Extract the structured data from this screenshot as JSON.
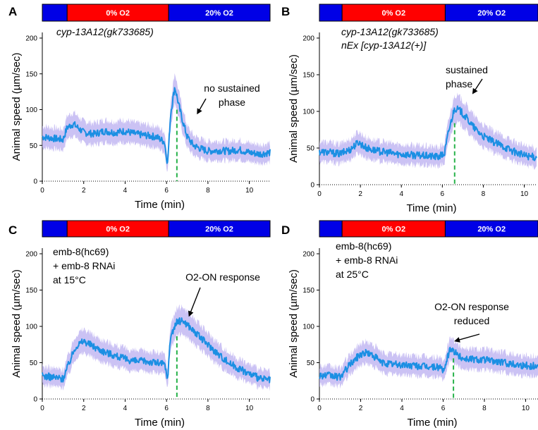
{
  "chart_data": [
    {
      "type": "line",
      "panel": "A",
      "xlabel": "Time (min)",
      "ylabel": "Animal speed (µm/sec)",
      "xlim": [
        0,
        11
      ],
      "ylim": [
        0,
        200
      ],
      "xticks": [
        0,
        2,
        4,
        6,
        8,
        10
      ],
      "yticks": [
        0,
        50,
        100,
        150,
        200
      ],
      "condition_bar": [
        {
          "label": "",
          "start": 0,
          "end": 1.2,
          "color": "#0000e6"
        },
        {
          "label": "0% O2",
          "start": 1.2,
          "end": 6.1,
          "color": "#ff0000"
        },
        {
          "label": "20% O2",
          "start": 6.1,
          "end": 11,
          "color": "#0000e6"
        }
      ],
      "annotation_lines": [
        "cyp-13A12(gk733685)"
      ],
      "callout": {
        "lines": [
          "no sustained",
          "phase"
        ],
        "points_to": [
          7.5,
          95
        ]
      },
      "marker_x": 6.5,
      "series": [
        {
          "x": [
            0,
            0.5,
            1.0,
            1.2,
            1.5,
            2.0,
            2.5,
            3.0,
            3.5,
            4.0,
            4.5,
            5.0,
            5.5,
            5.9,
            6.05,
            6.2,
            6.4,
            6.6,
            6.8,
            7.0,
            7.3,
            7.6,
            8.0,
            8.5,
            9.0,
            9.5,
            10.0,
            10.5,
            11.0
          ],
          "y": [
            62,
            60,
            58,
            75,
            80,
            68,
            66,
            70,
            68,
            70,
            66,
            64,
            62,
            55,
            24,
            95,
            132,
            105,
            82,
            62,
            50,
            46,
            42,
            43,
            42,
            44,
            40,
            38,
            40
          ],
          "color": "#1b8fe3"
        }
      ]
    },
    {
      "type": "line",
      "panel": "B",
      "xlabel": "Time (min)",
      "ylabel": "Animal speed (µm/sec)",
      "xlim": [
        0,
        10.6
      ],
      "ylim": [
        0,
        200
      ],
      "xticks": [
        0,
        2,
        4,
        6,
        8,
        10
      ],
      "yticks": [
        0,
        50,
        100,
        150,
        200
      ],
      "condition_bar": [
        {
          "label": "",
          "start": 0,
          "end": 1.1,
          "color": "#0000e6"
        },
        {
          "label": "0% O2",
          "start": 1.1,
          "end": 6.1,
          "color": "#ff0000"
        },
        {
          "label": "20% O2",
          "start": 6.1,
          "end": 10.6,
          "color": "#0000e6"
        }
      ],
      "annotation_lines": [
        "cyp-13A12(gk733685)",
        "nEx [cyp-13A12(+)]"
      ],
      "callout": {
        "lines": [
          "sustained",
          "phase"
        ],
        "points_to": [
          7.5,
          125
        ]
      },
      "marker_x": 6.6,
      "series": [
        {
          "x": [
            0,
            0.5,
            1.0,
            1.5,
            1.9,
            2.3,
            2.8,
            3.3,
            3.8,
            4.3,
            4.8,
            5.3,
            5.8,
            6.1,
            6.3,
            6.6,
            6.9,
            7.2,
            7.6,
            8.0,
            8.5,
            9.0,
            9.5,
            10.0,
            10.6
          ],
          "y": [
            45,
            44,
            42,
            48,
            58,
            50,
            46,
            44,
            42,
            41,
            40,
            39,
            38,
            42,
            72,
            105,
            100,
            90,
            76,
            66,
            58,
            52,
            45,
            40,
            37
          ],
          "color": "#1b8fe3"
        }
      ]
    },
    {
      "type": "line",
      "panel": "C",
      "xlabel": "Time (min)",
      "ylabel": "Animal speed (µm/sec)",
      "xlim": [
        0,
        11
      ],
      "ylim": [
        0,
        200
      ],
      "xticks": [
        0,
        2,
        4,
        6,
        8,
        10
      ],
      "yticks": [
        0,
        50,
        100,
        150,
        200
      ],
      "condition_bar": [
        {
          "label": "",
          "start": 0,
          "end": 1.2,
          "color": "#0000e6"
        },
        {
          "label": "0% O2",
          "start": 1.2,
          "end": 6.1,
          "color": "#ff0000"
        },
        {
          "label": "20% O2",
          "start": 6.1,
          "end": 11,
          "color": "#0000e6"
        }
      ],
      "annotation_lines": [
        "emb-8(hc69)",
        "+ emb-8 RNAi",
        "at 15°C"
      ],
      "callout": {
        "lines": [
          "O2-ON response"
        ],
        "points_to": [
          7.1,
          115
        ]
      },
      "marker_x": 6.5,
      "series": [
        {
          "x": [
            0,
            0.5,
            1.0,
            1.3,
            1.6,
            2.0,
            2.5,
            3.0,
            3.5,
            4.0,
            4.5,
            5.0,
            5.5,
            5.9,
            6.05,
            6.2,
            6.5,
            6.8,
            7.1,
            7.5,
            8.0,
            8.5,
            9.0,
            9.5,
            10.0,
            10.5,
            11.0
          ],
          "y": [
            32,
            30,
            28,
            50,
            72,
            80,
            72,
            65,
            60,
            55,
            52,
            52,
            50,
            48,
            28,
            88,
            106,
            108,
            100,
            88,
            75,
            62,
            50,
            42,
            35,
            28,
            26
          ],
          "color": "#1b8fe3"
        }
      ]
    },
    {
      "type": "line",
      "panel": "D",
      "xlabel": "Time (min)",
      "ylabel": "Animal speed (µm/sec)",
      "xlim": [
        0,
        10.6
      ],
      "ylim": [
        0,
        200
      ],
      "xticks": [
        0,
        2,
        4,
        6,
        8,
        10
      ],
      "yticks": [
        0,
        50,
        100,
        150,
        200
      ],
      "condition_bar": [
        {
          "label": "",
          "start": 0,
          "end": 1.1,
          "color": "#0000e6"
        },
        {
          "label": "0% O2",
          "start": 1.1,
          "end": 6.1,
          "color": "#ff0000"
        },
        {
          "label": "20% O2",
          "start": 6.1,
          "end": 10.6,
          "color": "#0000e6"
        }
      ],
      "annotation_lines": [
        "emb-8(hc69)",
        "+ emb-8 RNAi",
        "at 25°C"
      ],
      "callout": {
        "lines": [
          "O2-ON response",
          "reduced"
        ],
        "points_to": [
          6.6,
          80
        ]
      },
      "marker_x": 6.5,
      "series": [
        {
          "x": [
            0,
            0.5,
            1.0,
            1.5,
            2.0,
            2.3,
            2.7,
            3.0,
            3.5,
            4.0,
            4.5,
            5.0,
            5.5,
            5.9,
            6.05,
            6.2,
            6.4,
            6.7,
            7.0,
            7.5,
            8.0,
            8.5,
            9.0,
            9.5,
            10.0,
            10.6
          ],
          "y": [
            33,
            32,
            30,
            48,
            62,
            64,
            58,
            50,
            48,
            47,
            46,
            45,
            44,
            44,
            36,
            58,
            70,
            60,
            56,
            55,
            54,
            52,
            50,
            48,
            46,
            45
          ],
          "color": "#1b8fe3"
        }
      ]
    }
  ]
}
